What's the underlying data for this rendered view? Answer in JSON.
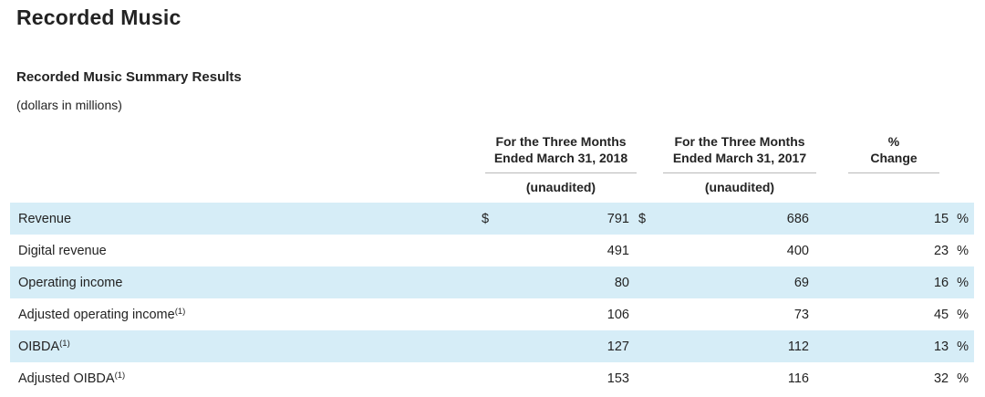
{
  "page": {
    "title": "Recorded Music",
    "section_title": "Recorded Music Summary Results",
    "units_note": "(dollars in millions)"
  },
  "table": {
    "column_headers": [
      {
        "line1": "For the Three Months",
        "line2": "Ended March 31, 2018",
        "note": "(unaudited)"
      },
      {
        "line1": "For the Three Months",
        "line2": "Ended March 31, 2017",
        "note": "(unaudited)"
      },
      {
        "line1": "%",
        "line2": "Change",
        "note": ""
      }
    ],
    "rows": [
      {
        "label": "Revenue",
        "sup": "",
        "cur2018": "$",
        "val2018": "791",
        "cur2017": "$",
        "val2017": "686",
        "change": "15",
        "unit": "%",
        "highlight": true
      },
      {
        "label": "Digital revenue",
        "sup": "",
        "cur2018": "",
        "val2018": "491",
        "cur2017": "",
        "val2017": "400",
        "change": "23",
        "unit": "%",
        "highlight": false
      },
      {
        "label": "Operating income",
        "sup": "",
        "cur2018": "",
        "val2018": "80",
        "cur2017": "",
        "val2017": "69",
        "change": "16",
        "unit": "%",
        "highlight": true
      },
      {
        "label": "Adjusted operating income",
        "sup": "(1)",
        "cur2018": "",
        "val2018": "106",
        "cur2017": "",
        "val2017": "73",
        "change": "45",
        "unit": "%",
        "highlight": false
      },
      {
        "label": "OIBDA",
        "sup": "(1)",
        "cur2018": "",
        "val2018": "127",
        "cur2017": "",
        "val2017": "112",
        "change": "13",
        "unit": "%",
        "highlight": true
      },
      {
        "label": "Adjusted OIBDA",
        "sup": "(1)",
        "cur2018": "",
        "val2018": "153",
        "cur2017": "",
        "val2017": "116",
        "change": "32",
        "unit": "%",
        "highlight": false
      }
    ]
  },
  "colors": {
    "row_highlight": "#d6edf7",
    "text": "#232323",
    "rule": "#b9b9b9"
  }
}
